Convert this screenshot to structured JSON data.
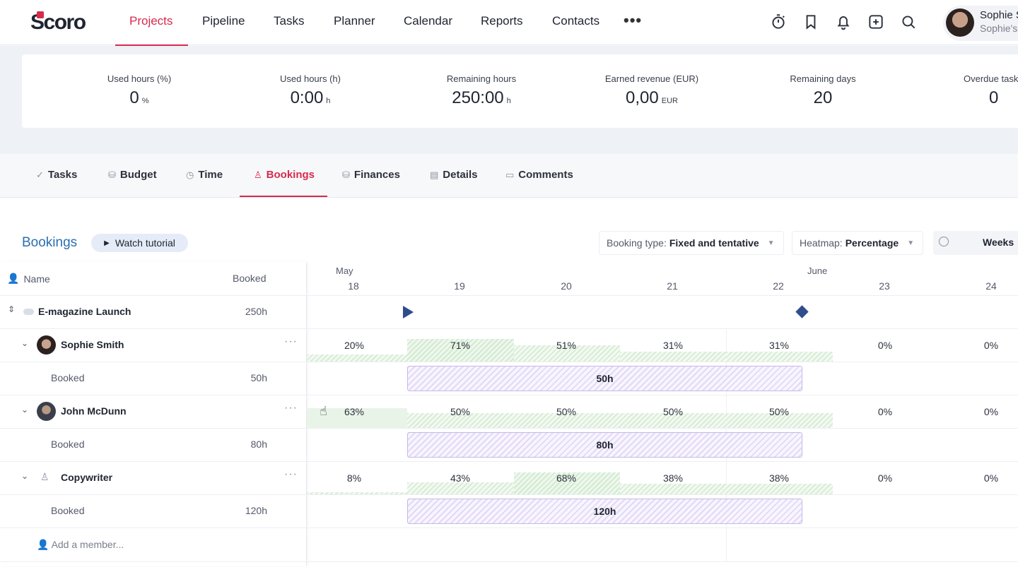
{
  "app": {
    "logo_text": "Scoro",
    "brand_color": "#d72a4d"
  },
  "nav": {
    "items": [
      "Projects",
      "Pipeline",
      "Tasks",
      "Planner",
      "Calendar",
      "Reports",
      "Contacts"
    ],
    "more": "•••",
    "icons": [
      "stopwatch-icon",
      "bookmark-icon",
      "bell-icon",
      "plus-square-icon",
      "search-icon"
    ]
  },
  "user": {
    "name": "Sophie S",
    "sub": "Sophie's"
  },
  "summary": [
    {
      "label": "Used hours (%)",
      "value": "0",
      "unit": "%"
    },
    {
      "label": "Used hours (h)",
      "value": "0:00",
      "unit": "h"
    },
    {
      "label": "Remaining hours",
      "value": "250:00",
      "unit": "h"
    },
    {
      "label": "Earned revenue (EUR)",
      "value": "0,00",
      "unit": "EUR"
    },
    {
      "label": "Remaining days",
      "value": "20",
      "unit": ""
    },
    {
      "label": "Overdue task",
      "value": "0",
      "unit": ""
    }
  ],
  "tabs": [
    "Tasks",
    "Budget",
    "Time",
    "Bookings",
    "Finances",
    "Details",
    "Comments"
  ],
  "bookings": {
    "title": "Bookings",
    "tutorial": "Watch tutorial",
    "booking_type_label": "Booking type:",
    "booking_type_value": "Fixed and tentative",
    "heatmap_label": "Heatmap:",
    "heatmap_value": "Percentage",
    "view": "Weeks"
  },
  "table": {
    "col_name": "Name",
    "col_booked": "Booked",
    "project": {
      "name": "E-magazine Launch",
      "booked": "250h"
    },
    "members": [
      {
        "name": "Sophie Smith",
        "sub_label": "Booked",
        "sub_value": "50h",
        "bar": "50h",
        "cells": [
          "20%",
          "71%",
          "51%",
          "31%",
          "31%",
          "0%",
          "0%"
        ]
      },
      {
        "name": "John McDunn",
        "sub_label": "Booked",
        "sub_value": "80h",
        "bar": "80h",
        "cells": [
          "63%",
          "50%",
          "50%",
          "50%",
          "50%",
          "0%",
          "0%"
        ]
      },
      {
        "name": "Copywriter",
        "sub_label": "Booked",
        "sub_value": "120h",
        "bar": "120h",
        "cells": [
          "8%",
          "43%",
          "68%",
          "38%",
          "38%",
          "0%",
          "0%"
        ]
      }
    ],
    "add_member": "Add a member..."
  },
  "calendar": {
    "months": [
      "May",
      "June"
    ],
    "weeks": [
      "18",
      "19",
      "20",
      "21",
      "22",
      "23",
      "24"
    ]
  }
}
